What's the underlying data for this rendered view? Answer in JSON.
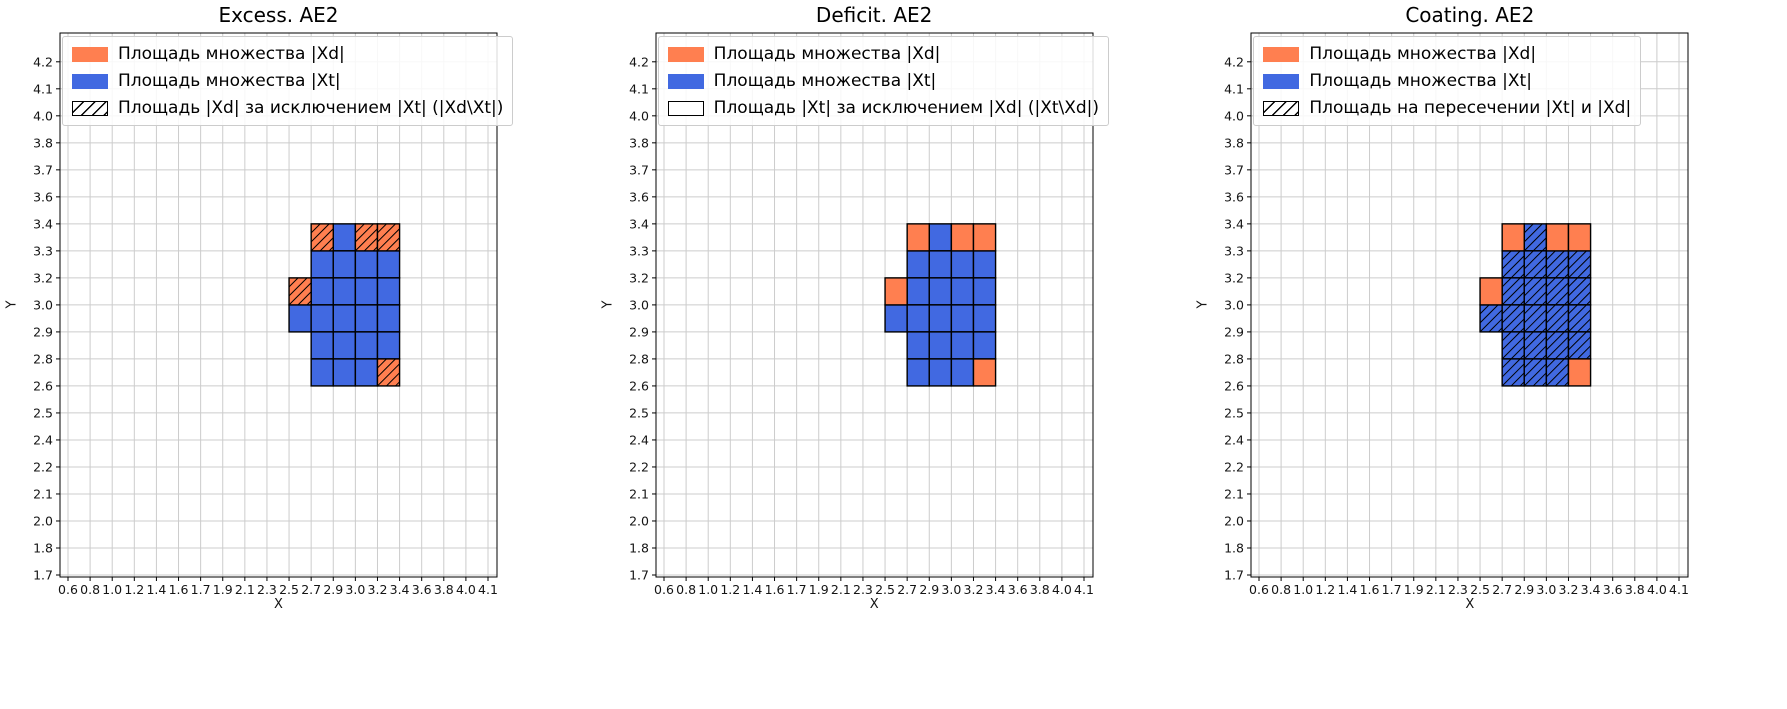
{
  "figure": {
    "background": "#ffffff"
  },
  "chart_data": [
    {
      "type": "heatmap",
      "title": "Excess. AE2",
      "xlabel": "X",
      "ylabel": "Y",
      "grid": true,
      "legend_position": "upper-left",
      "x_ticks": [
        "0.6",
        "0.8",
        "1.0",
        "1.2",
        "1.4",
        "1.6",
        "1.7",
        "1.9",
        "2.1",
        "2.3",
        "2.5",
        "2.7",
        "2.9",
        "3.0",
        "3.2",
        "3.4",
        "3.6",
        "3.8",
        "4.0",
        "4.1"
      ],
      "y_ticks": [
        "1.7",
        "1.8",
        "2.0",
        "2.1",
        "2.2",
        "2.4",
        "2.5",
        "2.6",
        "2.8",
        "2.9",
        "3.0",
        "3.2",
        "3.3",
        "3.4",
        "3.6",
        "3.7",
        "3.8",
        "4.0",
        "4.1",
        "4.2"
      ],
      "legend": [
        {
          "label": "Площадь множества |Xd|",
          "fill": "#ff7f50",
          "hatch": false,
          "border": false
        },
        {
          "label": "Площадь множества  |Xt|",
          "fill": "#4169e1",
          "hatch": false,
          "border": false
        },
        {
          "label": "Площадь |Xd| за исключением |Xt| (|Xd\\Xt|)",
          "fill": "#ffffff",
          "hatch": true,
          "border": true
        }
      ],
      "cells": {
        "xd_only": [
          [
            "2.7",
            "3.4"
          ],
          [
            "3.0",
            "3.4"
          ],
          [
            "3.2",
            "3.4"
          ],
          [
            "2.5",
            "3.2"
          ],
          [
            "3.2",
            "2.8"
          ]
        ],
        "xt": [
          [
            "2.9",
            "3.4"
          ],
          [
            "2.7",
            "3.3"
          ],
          [
            "2.9",
            "3.3"
          ],
          [
            "3.0",
            "3.3"
          ],
          [
            "3.2",
            "3.3"
          ],
          [
            "2.7",
            "3.2"
          ],
          [
            "2.9",
            "3.2"
          ],
          [
            "3.0",
            "3.2"
          ],
          [
            "3.2",
            "3.2"
          ],
          [
            "2.5",
            "3.0"
          ],
          [
            "2.7",
            "3.0"
          ],
          [
            "2.9",
            "3.0"
          ],
          [
            "3.0",
            "3.0"
          ],
          [
            "3.2",
            "3.0"
          ],
          [
            "2.7",
            "2.9"
          ],
          [
            "2.9",
            "2.9"
          ],
          [
            "3.0",
            "2.9"
          ],
          [
            "3.2",
            "2.9"
          ],
          [
            "2.7",
            "2.8"
          ],
          [
            "2.9",
            "2.8"
          ],
          [
            "3.0",
            "2.8"
          ]
        ]
      },
      "hatched_cells": "xd_only"
    },
    {
      "type": "heatmap",
      "title": "Deficit. AE2",
      "xlabel": "X",
      "ylabel": "Y",
      "grid": true,
      "legend_position": "upper-left",
      "x_ticks": [
        "0.6",
        "0.8",
        "1.0",
        "1.2",
        "1.4",
        "1.6",
        "1.7",
        "1.9",
        "2.1",
        "2.3",
        "2.5",
        "2.7",
        "2.9",
        "3.0",
        "3.2",
        "3.4",
        "3.6",
        "3.8",
        "4.0",
        "4.1"
      ],
      "y_ticks": [
        "1.7",
        "1.8",
        "2.0",
        "2.1",
        "2.2",
        "2.4",
        "2.5",
        "2.6",
        "2.8",
        "2.9",
        "3.0",
        "3.2",
        "3.3",
        "3.4",
        "3.6",
        "3.7",
        "3.8",
        "4.0",
        "4.1",
        "4.2"
      ],
      "legend": [
        {
          "label": "Площадь множества |Xd|",
          "fill": "#ff7f50",
          "hatch": false,
          "border": false
        },
        {
          "label": "Площадь множества  |Xt|",
          "fill": "#4169e1",
          "hatch": false,
          "border": false
        },
        {
          "label": "Площадь |Xt| за исключением |Xd| (|Xt\\Xd|)",
          "fill": "#ffffff",
          "hatch": false,
          "border": true
        }
      ],
      "cells": {
        "xd_only": [
          [
            "2.7",
            "3.4"
          ],
          [
            "3.0",
            "3.4"
          ],
          [
            "3.2",
            "3.4"
          ],
          [
            "2.5",
            "3.2"
          ],
          [
            "3.2",
            "2.8"
          ]
        ],
        "xt": [
          [
            "2.9",
            "3.4"
          ],
          [
            "2.7",
            "3.3"
          ],
          [
            "2.9",
            "3.3"
          ],
          [
            "3.0",
            "3.3"
          ],
          [
            "3.2",
            "3.3"
          ],
          [
            "2.7",
            "3.2"
          ],
          [
            "2.9",
            "3.2"
          ],
          [
            "3.0",
            "3.2"
          ],
          [
            "3.2",
            "3.2"
          ],
          [
            "2.5",
            "3.0"
          ],
          [
            "2.7",
            "3.0"
          ],
          [
            "2.9",
            "3.0"
          ],
          [
            "3.0",
            "3.0"
          ],
          [
            "3.2",
            "3.0"
          ],
          [
            "2.7",
            "2.9"
          ],
          [
            "2.9",
            "2.9"
          ],
          [
            "3.0",
            "2.9"
          ],
          [
            "3.2",
            "2.9"
          ],
          [
            "2.7",
            "2.8"
          ],
          [
            "2.9",
            "2.8"
          ],
          [
            "3.0",
            "2.8"
          ]
        ]
      },
      "hatched_cells": "none"
    },
    {
      "type": "heatmap",
      "title": "Coating. AE2",
      "xlabel": "X",
      "ylabel": "Y",
      "grid": true,
      "legend_position": "upper-left",
      "x_ticks": [
        "0.6",
        "0.8",
        "1.0",
        "1.2",
        "1.4",
        "1.6",
        "1.7",
        "1.9",
        "2.1",
        "2.3",
        "2.5",
        "2.7",
        "2.9",
        "3.0",
        "3.2",
        "3.4",
        "3.6",
        "3.8",
        "4.0",
        "4.1"
      ],
      "y_ticks": [
        "1.7",
        "1.8",
        "2.0",
        "2.1",
        "2.2",
        "2.4",
        "2.5",
        "2.6",
        "2.8",
        "2.9",
        "3.0",
        "3.2",
        "3.3",
        "3.4",
        "3.6",
        "3.7",
        "3.8",
        "4.0",
        "4.1",
        "4.2"
      ],
      "legend": [
        {
          "label": "Площадь множества |Xd|",
          "fill": "#ff7f50",
          "hatch": false,
          "border": false
        },
        {
          "label": "Площадь множества  |Xt|",
          "fill": "#4169e1",
          "hatch": false,
          "border": false
        },
        {
          "label": "Площадь на пересечении |Xt| и |Xd|",
          "fill": "#ffffff",
          "hatch": true,
          "border": true
        }
      ],
      "cells": {
        "xd_only": [
          [
            "2.7",
            "3.4"
          ],
          [
            "3.0",
            "3.4"
          ],
          [
            "3.2",
            "3.4"
          ],
          [
            "2.5",
            "3.2"
          ],
          [
            "3.2",
            "2.8"
          ]
        ],
        "xt": [
          [
            "2.9",
            "3.4"
          ],
          [
            "2.7",
            "3.3"
          ],
          [
            "2.9",
            "3.3"
          ],
          [
            "3.0",
            "3.3"
          ],
          [
            "3.2",
            "3.3"
          ],
          [
            "2.7",
            "3.2"
          ],
          [
            "2.9",
            "3.2"
          ],
          [
            "3.0",
            "3.2"
          ],
          [
            "3.2",
            "3.2"
          ],
          [
            "2.5",
            "3.0"
          ],
          [
            "2.7",
            "3.0"
          ],
          [
            "2.9",
            "3.0"
          ],
          [
            "3.0",
            "3.0"
          ],
          [
            "3.2",
            "3.0"
          ],
          [
            "2.7",
            "2.9"
          ],
          [
            "2.9",
            "2.9"
          ],
          [
            "3.0",
            "2.9"
          ],
          [
            "3.2",
            "2.9"
          ],
          [
            "2.7",
            "2.8"
          ],
          [
            "2.9",
            "2.8"
          ],
          [
            "3.0",
            "2.8"
          ]
        ]
      },
      "hatched_cells": "xt"
    }
  ]
}
